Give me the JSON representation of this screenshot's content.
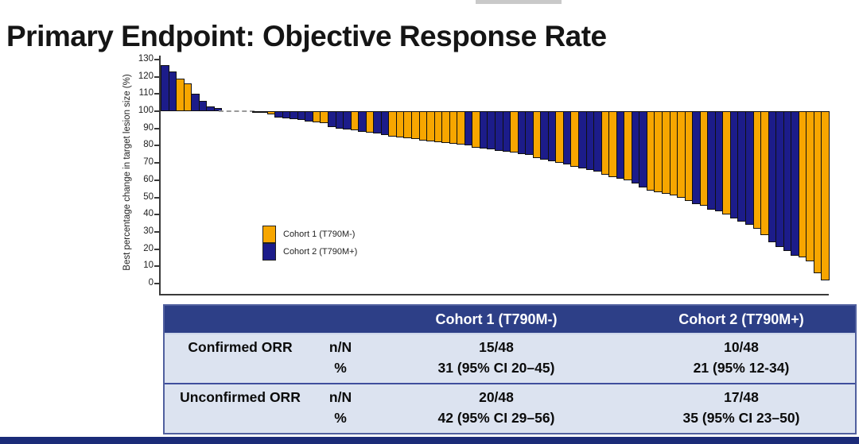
{
  "slide": {
    "title": "Primary Endpoint: Objective Response Rate",
    "footer_bar_color": "#1b2b78",
    "top_artifact_color": "#c9c9c9"
  },
  "chart_data": {
    "type": "bar",
    "subtype": "waterfall",
    "title": "",
    "xlabel": "",
    "ylabel": "Best percentage change in target lesion size (%)",
    "ylim": [
      0,
      130
    ],
    "ytick_step": 10,
    "baseline_value": 100,
    "grid": false,
    "legend_position": "lower-left-inside",
    "legend": [
      {
        "key": "O",
        "label": "Cohort 1 (T790M-)",
        "color": "#F7A600"
      },
      {
        "key": "B",
        "label": "Cohort 2 (T790M+)",
        "color": "#1C1C8A"
      },
      {
        "key": "-",
        "label": "no change (dashed at 100)",
        "color": "#9a9a9a"
      }
    ],
    "bars": [
      [
        "B",
        127
      ],
      [
        "B",
        123
      ],
      [
        "O",
        119
      ],
      [
        "O",
        116
      ],
      [
        "B",
        110
      ],
      [
        "B",
        106
      ],
      [
        "B",
        103
      ],
      [
        "B",
        102
      ],
      [
        "-",
        100
      ],
      [
        "-",
        100
      ],
      [
        "-",
        100
      ],
      [
        "-",
        100
      ],
      [
        "B",
        99.5
      ],
      [
        "B",
        99
      ],
      [
        "O",
        98
      ],
      [
        "B",
        96.5
      ],
      [
        "B",
        96
      ],
      [
        "B",
        95.5
      ],
      [
        "B",
        95
      ],
      [
        "B",
        94
      ],
      [
        "O",
        93.5
      ],
      [
        "O",
        93
      ],
      [
        "B",
        91
      ],
      [
        "B",
        90
      ],
      [
        "B",
        89.5
      ],
      [
        "O",
        89
      ],
      [
        "B",
        88
      ],
      [
        "O",
        87.5
      ],
      [
        "B",
        87
      ],
      [
        "B",
        86
      ],
      [
        "O",
        85.5
      ],
      [
        "O",
        85
      ],
      [
        "O",
        84.5
      ],
      [
        "O",
        84
      ],
      [
        "O",
        83
      ],
      [
        "O",
        82.5
      ],
      [
        "O",
        82
      ],
      [
        "O",
        81.5
      ],
      [
        "O",
        81
      ],
      [
        "O",
        80.5
      ],
      [
        "B",
        80
      ],
      [
        "O",
        79
      ],
      [
        "B",
        78.5
      ],
      [
        "B",
        78
      ],
      [
        "B",
        77
      ],
      [
        "B",
        76.5
      ],
      [
        "O",
        76
      ],
      [
        "B",
        75
      ],
      [
        "B",
        74.5
      ],
      [
        "O",
        73
      ],
      [
        "B",
        72
      ],
      [
        "B",
        71
      ],
      [
        "O",
        70
      ],
      [
        "B",
        69
      ],
      [
        "O",
        68
      ],
      [
        "B",
        67
      ],
      [
        "B",
        66
      ],
      [
        "B",
        65
      ],
      [
        "O",
        63
      ],
      [
        "O",
        62
      ],
      [
        "B",
        61
      ],
      [
        "O",
        60
      ],
      [
        "B",
        58
      ],
      [
        "B",
        56
      ],
      [
        "O",
        54
      ],
      [
        "O",
        53
      ],
      [
        "O",
        52
      ],
      [
        "O",
        51
      ],
      [
        "O",
        50
      ],
      [
        "O",
        48
      ],
      [
        "B",
        46
      ],
      [
        "O",
        45
      ],
      [
        "B",
        43
      ],
      [
        "B",
        42
      ],
      [
        "O",
        40
      ],
      [
        "B",
        38
      ],
      [
        "B",
        36
      ],
      [
        "B",
        34
      ],
      [
        "O",
        32
      ],
      [
        "O",
        28
      ],
      [
        "B",
        24
      ],
      [
        "B",
        21
      ],
      [
        "B",
        19
      ],
      [
        "B",
        16
      ],
      [
        "O",
        15
      ],
      [
        "O",
        13
      ],
      [
        "O",
        6
      ],
      [
        "O",
        2
      ]
    ]
  },
  "table": {
    "header": [
      "",
      "",
      "Cohort 1 (T790M-)",
      "Cohort 2 (T790M+)"
    ],
    "rows": [
      {
        "label": "Confirmed ORR",
        "sub": [
          [
            "n/N",
            "15/48",
            "10/48"
          ],
          [
            "%",
            "31 (95% CI 20–45)",
            "21 (95% 12-34)"
          ]
        ]
      },
      {
        "label": "Unconfirmed ORR",
        "sub": [
          [
            "n/N",
            "20/48",
            "17/48"
          ],
          [
            "%",
            "42 (95% CI 29–56)",
            "35 (95% CI 23–50)"
          ]
        ]
      }
    ]
  }
}
